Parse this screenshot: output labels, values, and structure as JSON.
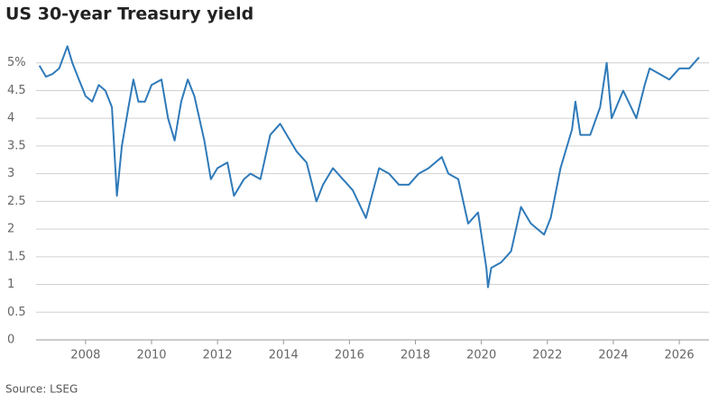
{
  "chart_data": {
    "type": "line",
    "title": "US 30-year Treasury yield",
    "source": "Source: LSEG",
    "x": [
      2006.6,
      2006.8,
      2007.0,
      2007.2,
      2007.45,
      2007.6,
      2007.8,
      2008.0,
      2008.2,
      2008.4,
      2008.6,
      2008.8,
      2008.95,
      2009.1,
      2009.3,
      2009.45,
      2009.6,
      2009.8,
      2010.0,
      2010.3,
      2010.5,
      2010.7,
      2010.9,
      2011.1,
      2011.3,
      2011.6,
      2011.8,
      2012.0,
      2012.3,
      2012.5,
      2012.8,
      2013.0,
      2013.3,
      2013.6,
      2013.9,
      2014.1,
      2014.4,
      2014.7,
      2015.0,
      2015.2,
      2015.5,
      2015.8,
      2016.1,
      2016.5,
      2016.9,
      2017.2,
      2017.5,
      2017.8,
      2018.1,
      2018.4,
      2018.8,
      2019.0,
      2019.3,
      2019.6,
      2019.9,
      2020.15,
      2020.2,
      2020.3,
      2020.6,
      2020.9,
      2021.2,
      2021.5,
      2021.9,
      2022.1,
      2022.4,
      2022.75,
      2022.85,
      2023.0,
      2023.3,
      2023.6,
      2023.8,
      2023.95,
      2024.3,
      2024.7,
      2024.95,
      2025.1,
      2025.4,
      2025.7,
      2026.0,
      2026.3,
      2026.6
    ],
    "series": [
      {
        "name": "US 30-year Treasury yield",
        "color": "#2f7ab9",
        "values": [
          4.95,
          4.75,
          4.8,
          4.9,
          5.3,
          5.0,
          4.7,
          4.4,
          4.3,
          4.6,
          4.5,
          4.2,
          2.6,
          3.5,
          4.2,
          4.7,
          4.3,
          4.3,
          4.6,
          4.7,
          4.0,
          3.6,
          4.3,
          4.7,
          4.4,
          3.6,
          2.9,
          3.1,
          3.2,
          2.6,
          2.9,
          3.0,
          2.9,
          3.7,
          3.9,
          3.7,
          3.4,
          3.2,
          2.5,
          2.8,
          3.1,
          2.9,
          2.7,
          2.2,
          3.1,
          3.0,
          2.8,
          2.8,
          3.0,
          3.1,
          3.3,
          3.0,
          2.9,
          2.1,
          2.3,
          1.3,
          0.95,
          1.3,
          1.4,
          1.6,
          2.4,
          2.1,
          1.9,
          2.2,
          3.1,
          3.8,
          4.3,
          3.7,
          3.7,
          4.2,
          5.0,
          4.0,
          4.5,
          4.0,
          4.6,
          4.9,
          4.8,
          4.7,
          4.9,
          4.9,
          5.1
        ]
      }
    ],
    "xlim": [
      2006.5,
      2026.9
    ],
    "xticks": [
      2008,
      2010,
      2012,
      2014,
      2016,
      2018,
      2020,
      2022,
      2024,
      2026
    ],
    "ylim": [
      0,
      5.5
    ],
    "yticks": [
      0,
      0.5,
      1,
      1.5,
      2,
      2.5,
      3,
      3.5,
      4,
      4.5,
      {
        "value": 5,
        "label": "5%"
      }
    ],
    "grid": true
  }
}
